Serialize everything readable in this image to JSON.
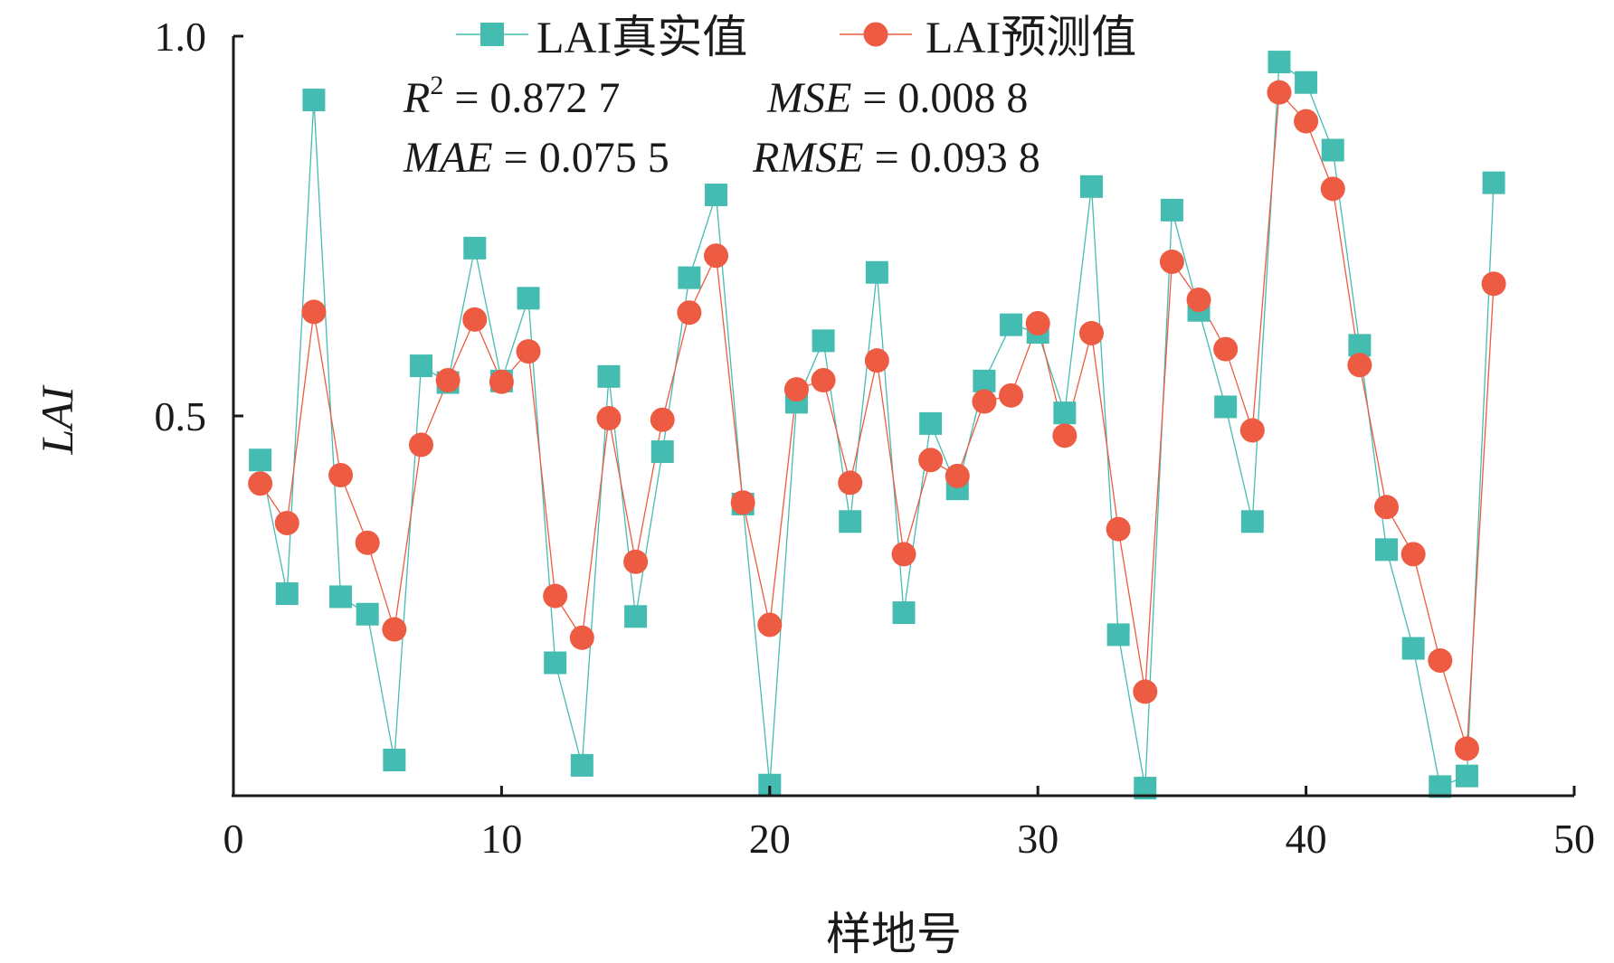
{
  "chart_data": {
    "type": "line",
    "x": [
      1,
      2,
      3,
      4,
      5,
      6,
      7,
      8,
      9,
      10,
      11,
      12,
      13,
      14,
      15,
      16,
      17,
      18,
      19,
      20,
      21,
      22,
      23,
      24,
      25,
      26,
      27,
      28,
      29,
      30,
      31,
      32,
      33,
      34,
      35,
      36,
      37,
      38,
      39,
      40,
      41,
      42,
      43,
      44,
      45,
      46,
      47
    ],
    "series": [
      {
        "name": "LAI真实值",
        "marker": "square",
        "color": "#45BCB1",
        "values": [
          0.442,
          0.266,
          0.916,
          0.262,
          0.239,
          0.047,
          0.566,
          0.544,
          0.721,
          0.546,
          0.655,
          0.175,
          0.04,
          0.552,
          0.236,
          0.453,
          0.682,
          0.791,
          0.384,
          0.014,
          0.518,
          0.599,
          0.361,
          0.689,
          0.241,
          0.49,
          0.404,
          0.546,
          0.62,
          0.61,
          0.504,
          0.802,
          0.212,
          0.01,
          0.771,
          0.639,
          0.512,
          0.361,
          0.966,
          0.939,
          0.85,
          0.593,
          0.324,
          0.194,
          0.012,
          0.026,
          0.807
        ]
      },
      {
        "name": "LAI预测值",
        "marker": "circle",
        "color": "#EC5B42",
        "values": [
          0.411,
          0.359,
          0.637,
          0.422,
          0.333,
          0.219,
          0.462,
          0.547,
          0.627,
          0.545,
          0.585,
          0.263,
          0.208,
          0.497,
          0.308,
          0.495,
          0.636,
          0.711,
          0.386,
          0.225,
          0.535,
          0.547,
          0.412,
          0.573,
          0.318,
          0.442,
          0.421,
          0.519,
          0.527,
          0.622,
          0.474,
          0.609,
          0.351,
          0.137,
          0.703,
          0.653,
          0.588,
          0.481,
          0.926,
          0.888,
          0.799,
          0.567,
          0.38,
          0.318,
          0.178,
          0.062,
          0.674
        ]
      }
    ],
    "title": "",
    "xlabel": "样地号",
    "ylabel": "LAI",
    "xlim": [
      0,
      50
    ],
    "ylim": [
      0,
      1.0
    ],
    "x_ticks": [
      0,
      10,
      20,
      30,
      40,
      50
    ],
    "y_ticks": [
      "0.5",
      "1.0"
    ],
    "legend_position": "top-center",
    "grid": false,
    "annotations": {
      "r2_label": "R",
      "r2_sup": "2",
      "r2_value": "= 0.872 7",
      "mse_label": "MSE",
      "mse_value": "= 0.008 8",
      "mae_label": "MAE",
      "mae_value": "= 0.075 5",
      "rmse_label": "RMSE",
      "rmse_value": "= 0.093 8"
    }
  }
}
